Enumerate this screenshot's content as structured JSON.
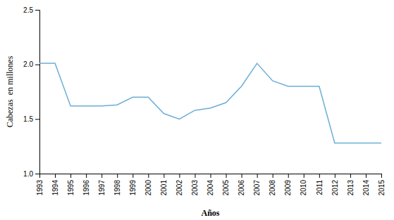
{
  "chart_data": {
    "type": "line",
    "x": [
      1993,
      1994,
      1995,
      1996,
      1997,
      1998,
      1999,
      2000,
      2001,
      2002,
      2003,
      2004,
      2005,
      2006,
      2007,
      2008,
      2009,
      2010,
      2011,
      2012,
      2013,
      2014,
      2015
    ],
    "values": [
      2.01,
      2.01,
      1.62,
      1.62,
      1.62,
      1.63,
      1.7,
      1.7,
      1.55,
      1.5,
      1.58,
      1.6,
      1.65,
      1.8,
      2.01,
      1.85,
      1.8,
      1.8,
      1.8,
      1.28,
      1.28,
      1.28,
      1.28
    ],
    "color": "#6baed6",
    "xlabel": "Años",
    "ylabel": "Cabezas  en millones",
    "xlim": [
      1993,
      2015
    ],
    "xticks": [
      1993,
      1994,
      1995,
      1996,
      1997,
      1998,
      1999,
      2000,
      2001,
      2002,
      2003,
      2004,
      2005,
      2006,
      2007,
      2008,
      2009,
      2010,
      2011,
      2012,
      2013,
      2014,
      2015
    ],
    "ylim": [
      1,
      2.5
    ],
    "yticks": [
      {
        "value": 1,
        "label": "1.0"
      },
      1.5,
      {
        "value": 2,
        "label": "2.0"
      },
      2.5
    ],
    "grid": false
  }
}
